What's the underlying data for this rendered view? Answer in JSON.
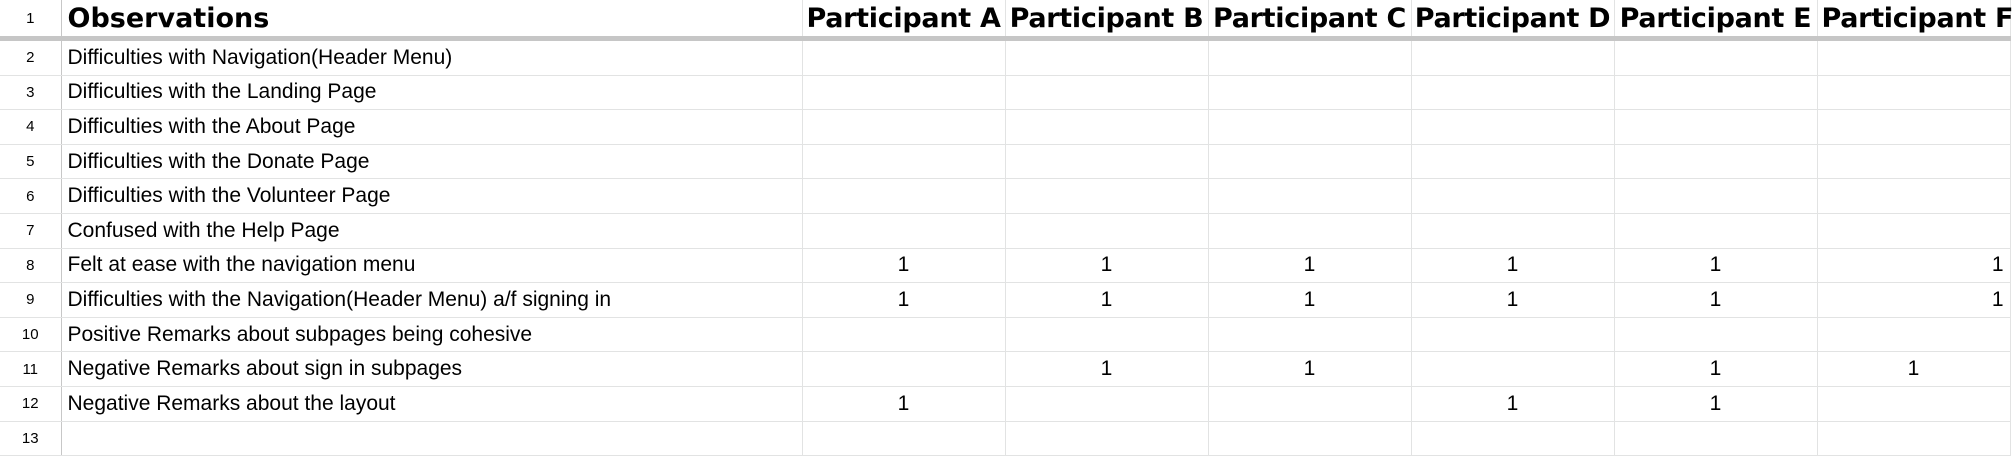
{
  "sheet": {
    "row_numbers": [
      "1",
      "2",
      "3",
      "4",
      "5",
      "6",
      "7",
      "8",
      "9",
      "10",
      "11",
      "12",
      "13"
    ],
    "header": {
      "observations_label": "Observations",
      "participants": [
        "Participant A",
        "Participant B",
        "Participant C",
        "Participant D",
        "Participant E",
        "Participant F"
      ]
    },
    "rows": [
      {
        "observation": "Difficulties with Navigation(Header Menu)",
        "values": [
          "",
          "",
          "",
          "",
          "",
          ""
        ]
      },
      {
        "observation": "Difficulties with the Landing Page",
        "values": [
          "",
          "",
          "",
          "",
          "",
          ""
        ]
      },
      {
        "observation": "Difficulties with the About Page",
        "values": [
          "",
          "",
          "",
          "",
          "",
          ""
        ]
      },
      {
        "observation": "Difficulties with the Donate Page",
        "values": [
          "",
          "",
          "",
          "",
          "",
          ""
        ]
      },
      {
        "observation": "Difficulties with the Volunteer Page",
        "values": [
          "",
          "",
          "",
          "",
          "",
          ""
        ]
      },
      {
        "observation": "Confused with the Help Page",
        "values": [
          "",
          "",
          "",
          "",
          "",
          ""
        ]
      },
      {
        "observation": "Felt at ease with the navigation menu",
        "values": [
          "1",
          "1",
          "1",
          "1",
          "1",
          "1"
        ]
      },
      {
        "observation": "Difficulties with the Navigation(Header Menu) a/f signing in",
        "values": [
          "1",
          "1",
          "1",
          "1",
          "1",
          "1"
        ]
      },
      {
        "observation": "Positive Remarks about subpages being cohesive",
        "values": [
          "",
          "",
          "",
          "",
          "",
          ""
        ]
      },
      {
        "observation": "Negative Remarks about sign in subpages",
        "values": [
          "",
          "1",
          "1",
          "",
          "1",
          "1"
        ]
      },
      {
        "observation": "Negative Remarks about the layout",
        "values": [
          "1",
          "",
          "",
          "1",
          "1",
          ""
        ]
      },
      {
        "observation": "",
        "values": [
          "",
          "",
          "",
          "",
          "",
          ""
        ]
      }
    ]
  }
}
